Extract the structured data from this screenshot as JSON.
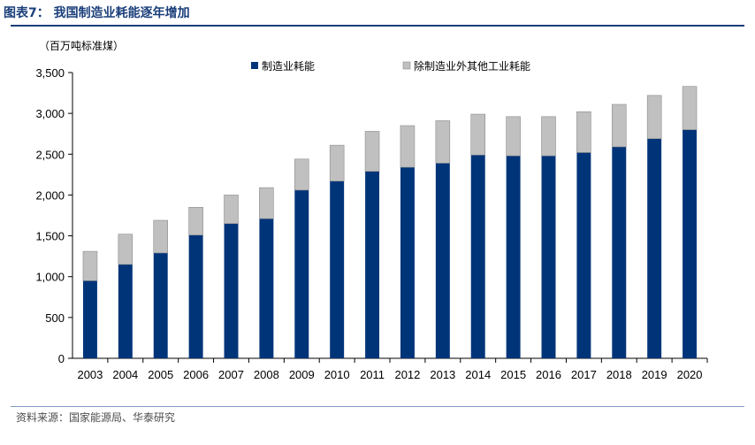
{
  "figure_title": "图表7：  我国制造业耗能逐年增加",
  "source": "资料来源：国家能源局、华泰研究",
  "chart_data": {
    "type": "bar",
    "stacked": true,
    "unit_label": "（百万吨标准煤）",
    "categories": [
      "2003",
      "2004",
      "2005",
      "2006",
      "2007",
      "2008",
      "2009",
      "2010",
      "2011",
      "2012",
      "2013",
      "2014",
      "2015",
      "2016",
      "2017",
      "2018",
      "2019",
      "2020"
    ],
    "series": [
      {
        "name": "制造业耗能",
        "color": "#003479",
        "values": [
          950,
          1150,
          1290,
          1510,
          1650,
          1710,
          2060,
          2170,
          2290,
          2340,
          2390,
          2490,
          2480,
          2480,
          2520,
          2590,
          2690,
          2800
        ]
      },
      {
        "name": "除制造业外其他工业耗能",
        "color": "#c0c0c0",
        "values": [
          360,
          370,
          400,
          340,
          350,
          380,
          380,
          440,
          490,
          510,
          520,
          500,
          480,
          480,
          500,
          520,
          530,
          530
        ]
      }
    ],
    "ylim": [
      0,
      3500
    ],
    "yticks": [
      0,
      500,
      1000,
      1500,
      2000,
      2500,
      3000,
      3500
    ],
    "ytick_labels": [
      "0",
      "500",
      "1,000",
      "1,500",
      "2,000",
      "2,500",
      "3,000",
      "3,500"
    ],
    "legend_position": "top",
    "grid": false
  }
}
